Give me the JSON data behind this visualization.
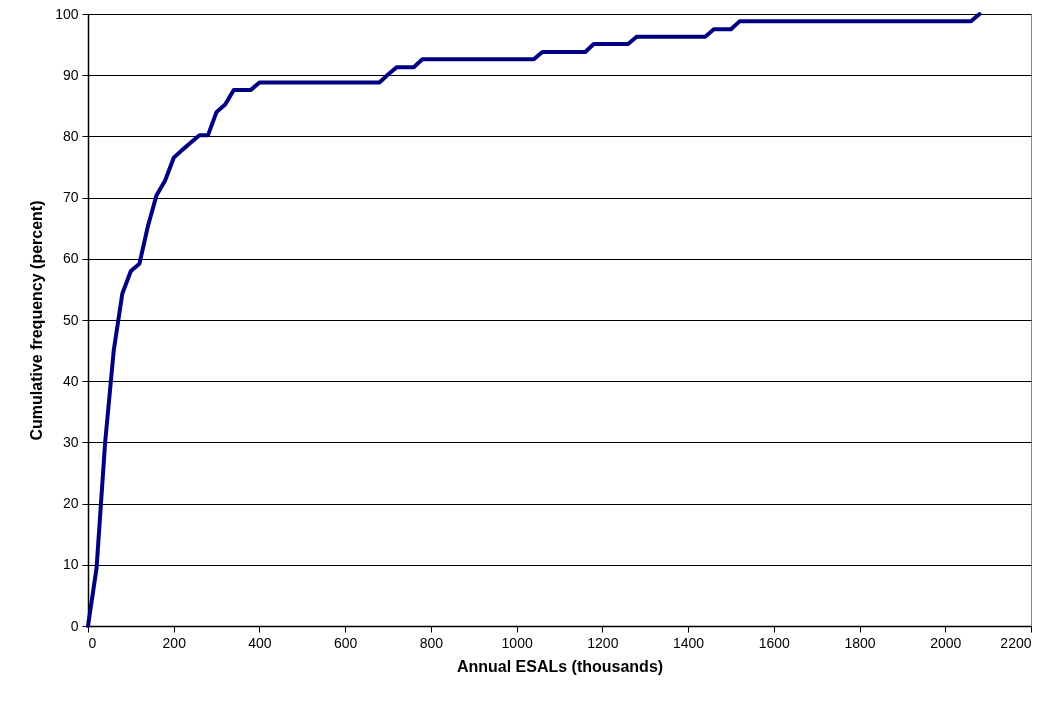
{
  "chart_data": {
    "type": "line",
    "xlabel": "Annual ESALs (thousands)",
    "ylabel": "Cumulative frequency (percent)",
    "x": [
      0,
      20,
      40,
      60,
      80,
      100,
      120,
      140,
      160,
      180,
      200,
      220,
      240,
      260,
      280,
      300,
      320,
      340,
      380,
      400,
      680,
      700,
      720,
      760,
      780,
      1040,
      1060,
      1160,
      1180,
      1260,
      1280,
      1440,
      1460,
      1500,
      1520,
      2060,
      2080
    ],
    "series": [
      {
        "color": "#000080",
        "values": [
          0,
          9.5,
          30,
          45,
          54.3,
          58,
          59.2,
          65.4,
          70.4,
          72.8,
          76.5,
          77.8,
          79,
          80.2,
          80.2,
          84,
          85.2,
          87.6,
          87.6,
          88.8,
          88.8,
          90.1,
          91.3,
          91.3,
          92.6,
          92.6,
          93.8,
          93.8,
          95.1,
          95.1,
          96.3,
          96.3,
          97.5,
          97.5,
          98.8,
          98.8,
          100
        ]
      }
    ],
    "xlim": [
      0,
      2200
    ],
    "xticks": [
      0,
      200,
      400,
      600,
      800,
      1000,
      1200,
      1400,
      1600,
      1800,
      2000,
      2200
    ],
    "ylim": [
      0,
      100
    ],
    "yticks": [
      0,
      10,
      20,
      30,
      40,
      50,
      60,
      70,
      80,
      90,
      100
    ],
    "grid": "y",
    "marker": "none",
    "line_style": "solid"
  }
}
